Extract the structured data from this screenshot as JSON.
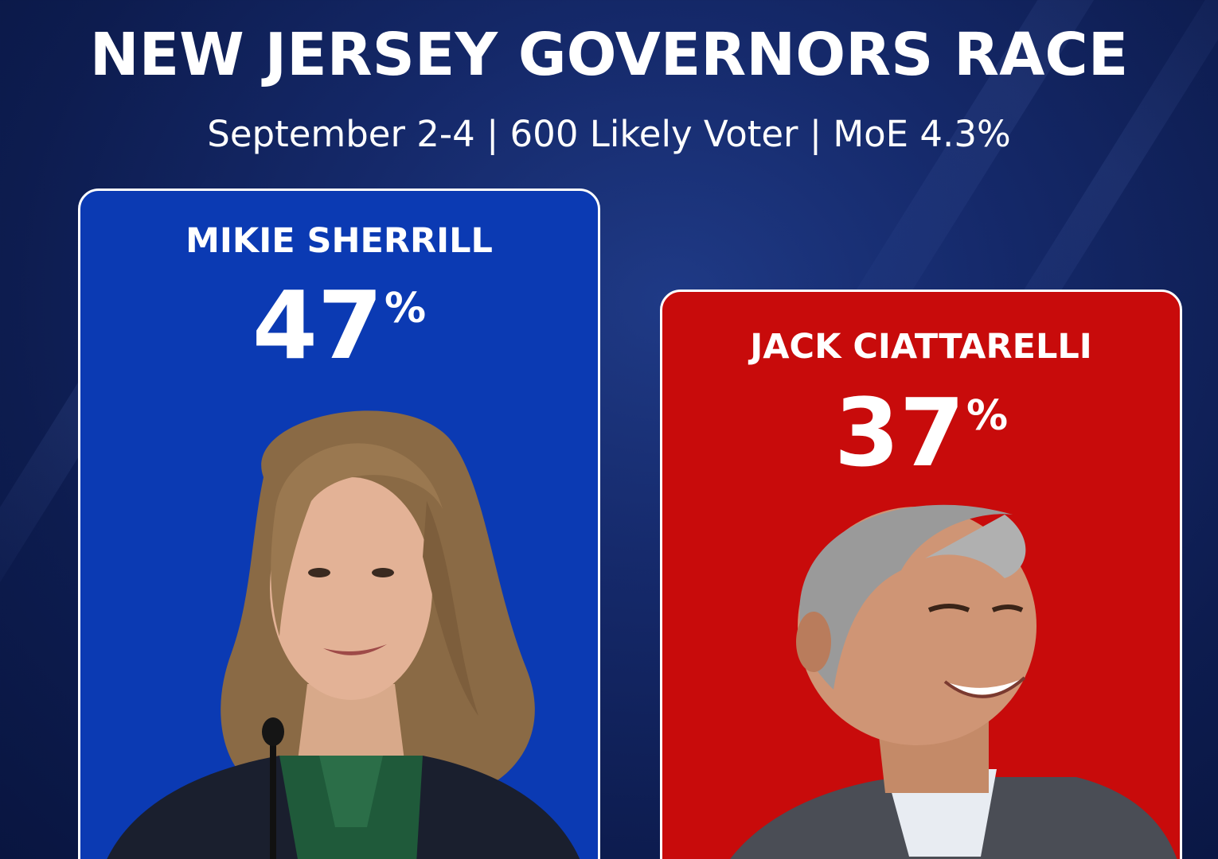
{
  "header": {
    "title": "NEW JERSEY GOVERNORS RACE",
    "subtitle": "September 2-4 | 600 Likely Voter | MoE 4.3%"
  },
  "colors": {
    "background": "#0d1c4f",
    "democrat_card": "#0b3ab3",
    "republican_card": "#c80b0b",
    "text": "#ffffff"
  },
  "chart_data": {
    "type": "bar",
    "title": "NEW JERSEY GOVERNORS RACE",
    "subtitle": "September 2-4 | 600 Likely Voter | MoE 4.3%",
    "categories": [
      "MIKIE SHERRILL",
      "JACK CIATTARELLI"
    ],
    "values": [
      47,
      37
    ],
    "value_labels": [
      "47",
      "37"
    ],
    "unit": "%",
    "colors": [
      "#0b3ab3",
      "#c80b0b"
    ]
  },
  "candidates": [
    {
      "name": "MIKIE SHERRILL",
      "pct": "47",
      "pct_sign": "%",
      "photo": "candidate-photo-woman"
    },
    {
      "name": "JACK CIATTARELLI",
      "pct": "37",
      "pct_sign": "%",
      "photo": "candidate-photo-man"
    }
  ]
}
